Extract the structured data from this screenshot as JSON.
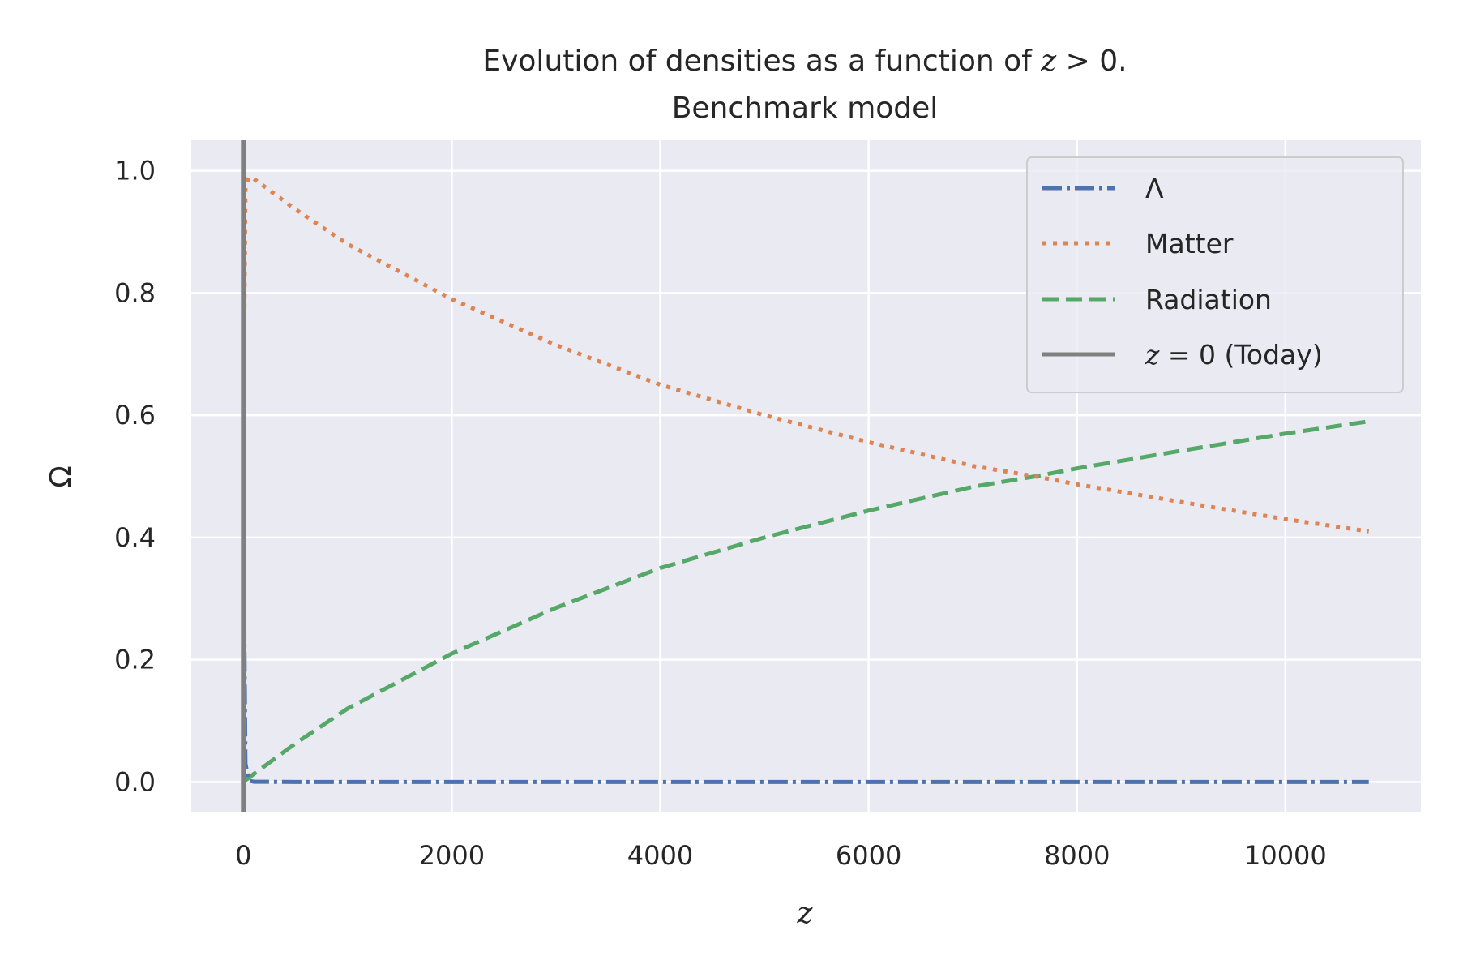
{
  "chart_data": {
    "type": "line",
    "title_line1_prefix": "Evolution of densities as a function of ",
    "title_line1_math_var": "z",
    "title_line1_math_rest": " > 0.",
    "title_line2": "Benchmark model",
    "xlabel": "z",
    "ylabel": "Ω",
    "xlim": [
      -500,
      11300
    ],
    "ylim": [
      -0.05,
      1.05
    ],
    "xticks": [
      0,
      2000,
      4000,
      6000,
      8000,
      10000
    ],
    "xtick_labels": [
      "0",
      "2000",
      "4000",
      "6000",
      "8000",
      "10000"
    ],
    "yticks": [
      0.0,
      0.2,
      0.4,
      0.6,
      0.8,
      1.0
    ],
    "ytick_labels": [
      "0.0",
      "0.2",
      "0.4",
      "0.6",
      "0.8",
      "1.0"
    ],
    "grid": true,
    "legend_position": "top-right",
    "series": [
      {
        "name": "Λ",
        "style": "dashdot",
        "color": "#4c72b0",
        "x": [
          0,
          10,
          20,
          50,
          100,
          500,
          1000,
          2000,
          4000,
          6000,
          8000,
          10000,
          10800
        ],
        "y": [
          0.69,
          0.23,
          0.03,
          0.0023,
          0.0003,
          0.0,
          0.0,
          0.0,
          0.0,
          0.0,
          0.0,
          0.0,
          0.0
        ]
      },
      {
        "name": "Matter",
        "style": "dotted",
        "color": "#dd8452",
        "x": [
          0,
          10,
          20,
          50,
          100,
          500,
          1000,
          2000,
          3000,
          4000,
          5000,
          6000,
          7000,
          7600,
          8000,
          9000,
          10000,
          10800
        ],
        "y": [
          0.31,
          0.77,
          0.97,
          0.99,
          0.987,
          0.937,
          0.88,
          0.79,
          0.715,
          0.65,
          0.6,
          0.556,
          0.517,
          0.5,
          0.487,
          0.458,
          0.43,
          0.41
        ]
      },
      {
        "name": "Radiation",
        "style": "dashed",
        "color": "#55a868",
        "x": [
          0,
          100,
          500,
          1000,
          2000,
          3000,
          4000,
          5000,
          6000,
          7000,
          7600,
          8000,
          9000,
          10000,
          10800
        ],
        "y": [
          0.0,
          0.013,
          0.063,
          0.12,
          0.21,
          0.285,
          0.35,
          0.4,
          0.444,
          0.483,
          0.5,
          0.513,
          0.542,
          0.57,
          0.59
        ]
      },
      {
        "name_math_var": "z",
        "name_math_rest": " = 0 (Today)",
        "style": "solid",
        "color": "#808080",
        "vline_x": 0
      }
    ]
  }
}
